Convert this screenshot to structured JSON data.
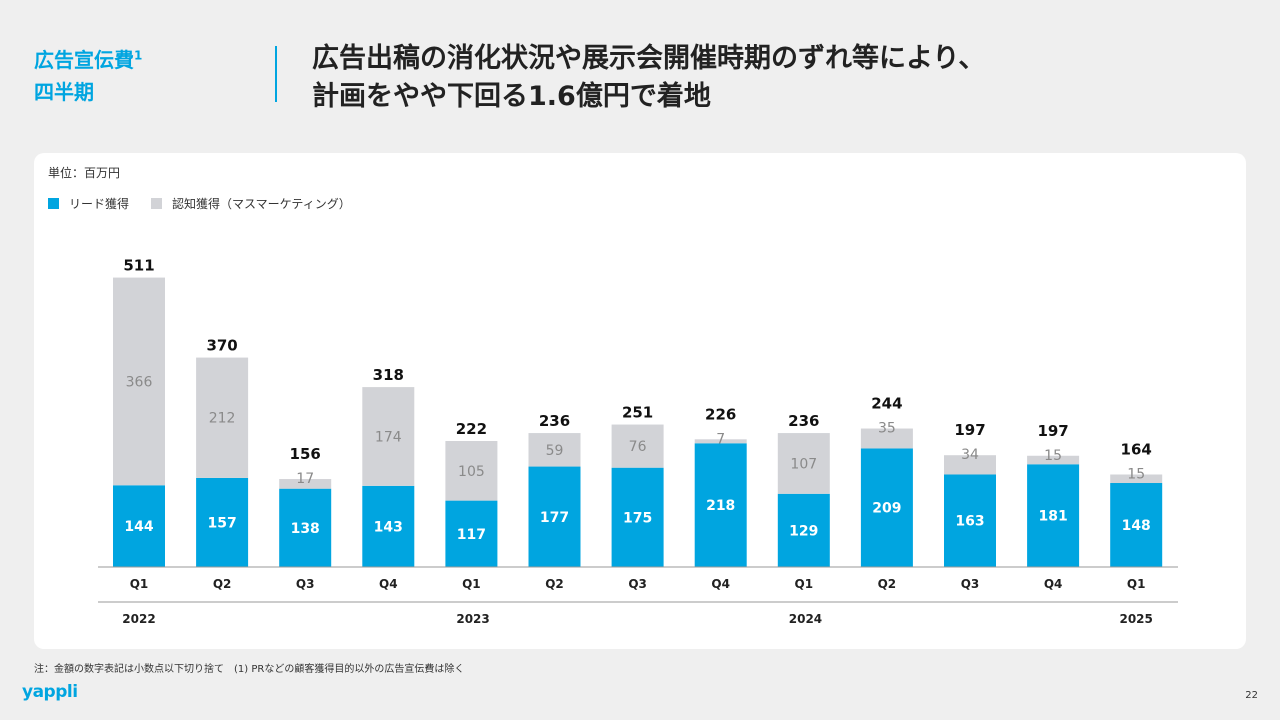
{
  "header": {
    "section_title": "広告宣伝費",
    "section_sup": "1",
    "section_subtitle": "四半期",
    "headline_line1": "広告出稿の消化状況や展示会開催時期のずれ等により、",
    "headline_line2": "計画をやや下回る1.6億円で着地"
  },
  "unit_label": "単位：百万円",
  "legend": [
    {
      "label": "リード獲得",
      "color": "#00a5e0"
    },
    {
      "label": "認知獲得（マスマーケティング）",
      "color": "#d2d3d7"
    }
  ],
  "colors": {
    "accent": "#00a5e0",
    "lead": "#00a5e0",
    "awareness": "#d2d3d7"
  },
  "chart_data": {
    "type": "bar",
    "stacked": true,
    "categories": [
      "Q1",
      "Q2",
      "Q3",
      "Q4",
      "Q1",
      "Q2",
      "Q3",
      "Q4",
      "Q1",
      "Q2",
      "Q3",
      "Q4",
      "Q1"
    ],
    "year_labels": [
      {
        "label": "2022",
        "index": 0
      },
      {
        "label": "2023",
        "index": 4
      },
      {
        "label": "2024",
        "index": 8
      },
      {
        "label": "2025",
        "index": 12
      }
    ],
    "series": [
      {
        "name": "リード獲得",
        "color": "#00a5e0",
        "values": [
          144,
          157,
          138,
          143,
          117,
          177,
          175,
          218,
          129,
          209,
          163,
          181,
          148
        ]
      },
      {
        "name": "認知獲得（マスマーケティング）",
        "color": "#d2d3d7",
        "values": [
          366,
          212,
          17,
          174,
          105,
          59,
          76,
          7,
          107,
          35,
          34,
          15,
          15
        ]
      }
    ],
    "totals": [
      511,
      370,
      156,
      318,
      222,
      236,
      251,
      226,
      236,
      244,
      197,
      197,
      164
    ],
    "ylim": [
      0,
      520
    ]
  },
  "footnote": "注：金額の数字表記は小数点以下切り捨て　(1) PRなどの顧客獲得目的以外の広告宣伝費は除く",
  "logo_text": "yappli",
  "page_number": "22"
}
